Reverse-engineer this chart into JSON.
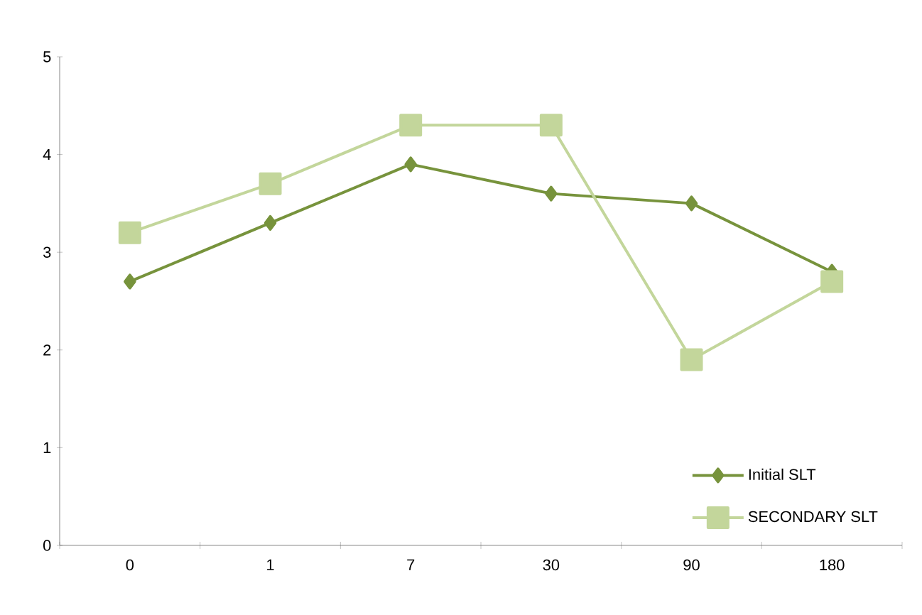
{
  "chart_data": {
    "type": "line",
    "categories": [
      "0",
      "1",
      "7",
      "30",
      "90",
      "180"
    ],
    "series": [
      {
        "name": "Initial SLT",
        "color": "#77933c",
        "marker": "diamond",
        "values": [
          2.7,
          3.3,
          3.9,
          3.6,
          3.5,
          2.8
        ]
      },
      {
        "name": "SECONDARY SLT",
        "color": "#c3d69b",
        "marker": "square",
        "values": [
          3.2,
          3.7,
          4.3,
          4.3,
          1.9,
          2.7
        ]
      }
    ],
    "ylim": [
      0,
      5
    ],
    "yticks": [
      0,
      1,
      2,
      3,
      4,
      5
    ],
    "grid": false,
    "legend": "bottom right",
    "line_style": "solid"
  }
}
